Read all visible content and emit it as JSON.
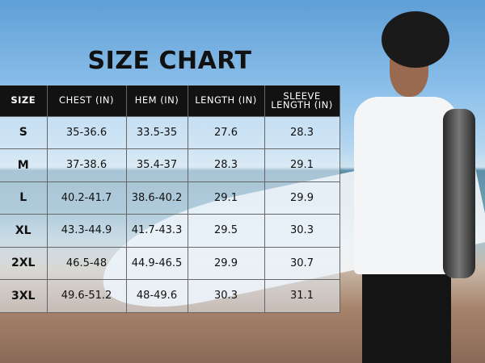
{
  "title": "SIZE CHART",
  "table": {
    "headers": [
      "SIZE",
      "CHEST (IN)",
      "HEM (IN)",
      "LENGTH (IN)",
      "SLEEVE LENGTH (IN)"
    ],
    "rows": [
      [
        "S",
        "35-36.6",
        "33.5-35",
        "27.6",
        "28.3"
      ],
      [
        "M",
        "37-38.6",
        "35.4-37",
        "28.3",
        "29.1"
      ],
      [
        "L",
        "40.2-41.7",
        "38.6-40.2",
        "29.1",
        "29.9"
      ],
      [
        "XL",
        "43.3-44.9",
        "41.7-43.3",
        "29.5",
        "30.3"
      ],
      [
        "2XL",
        "46.5-48",
        "44.9-46.5",
        "29.9",
        "30.7"
      ],
      [
        "3XL",
        "49.6-51.2",
        "48-49.6",
        "30.3",
        "31.1"
      ]
    ]
  }
}
